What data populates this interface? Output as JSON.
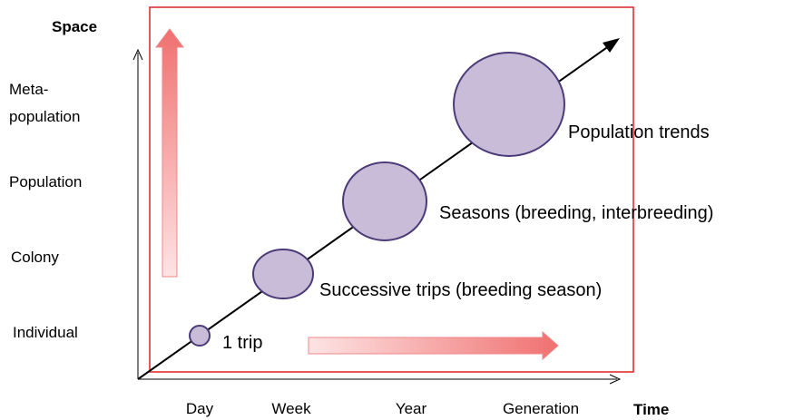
{
  "axes": {
    "y_title": "Space",
    "x_title": "Time"
  },
  "y_levels": [
    [
      "Meta-",
      "population"
    ],
    [
      "Population"
    ],
    [
      "Colony"
    ],
    [
      "Individual"
    ]
  ],
  "x_levels": [
    "Day",
    "Week",
    "Year",
    "Generation"
  ],
  "scales": [
    "1 trip",
    "Successive trips (breeding season)",
    "Seasons (breeding, interbreeding)",
    "Population trends"
  ]
}
